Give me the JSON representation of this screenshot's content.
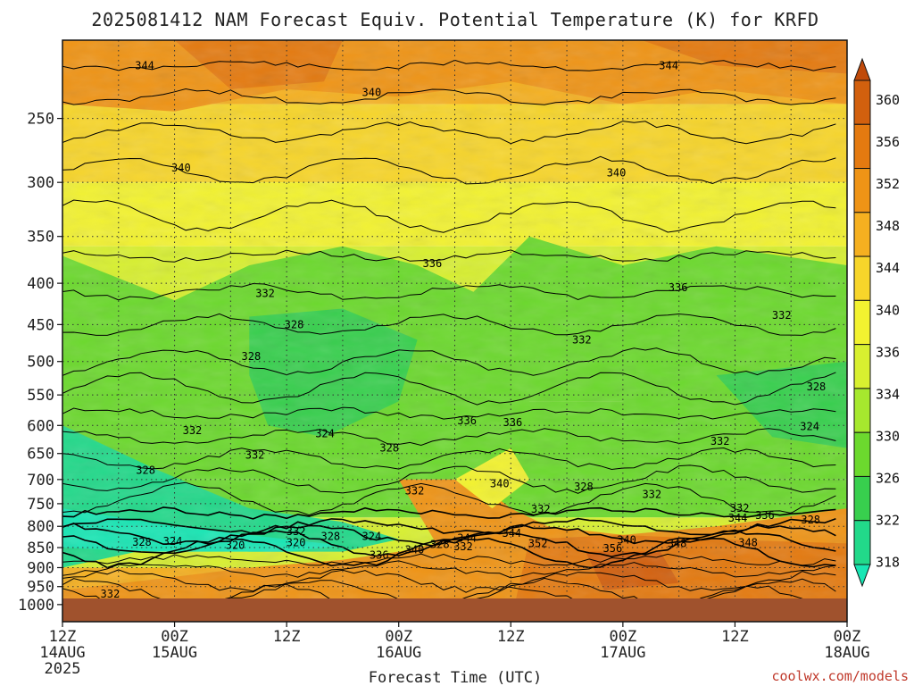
{
  "title": "2025081412 NAM Forecast Equiv. Potential Temperature (K) for KRFD",
  "credit": "coolwx.com/models",
  "colors": {
    "ground": "#a0522d",
    "background": "#ffffff",
    "grid": "#333333",
    "credit": "#c0392b"
  },
  "chart_data": {
    "type": "heatmap",
    "title": "2025081412 NAM Forecast Equiv. Potential Temperature (K) for KRFD",
    "xlabel": "Forecast Time (UTC)",
    "ylabel": "",
    "x_range_hours": [
      0,
      84
    ],
    "y_scale": "log",
    "y_range_hPa": [
      200,
      1050
    ],
    "y_ticks": [
      250,
      300,
      350,
      400,
      450,
      500,
      550,
      600,
      650,
      700,
      750,
      800,
      850,
      900,
      950,
      1000
    ],
    "x_ticks": [
      {
        "hour": 0,
        "line1": "12Z",
        "line2": "14AUG",
        "line3": "2025"
      },
      {
        "hour": 12,
        "line1": "00Z",
        "line2": "15AUG",
        "line3": ""
      },
      {
        "hour": 24,
        "line1": "12Z",
        "line2": "",
        "line3": ""
      },
      {
        "hour": 36,
        "line1": "00Z",
        "line2": "16AUG",
        "line3": ""
      },
      {
        "hour": 48,
        "line1": "12Z",
        "line2": "",
        "line3": ""
      },
      {
        "hour": 60,
        "line1": "00Z",
        "line2": "17AUG",
        "line3": ""
      },
      {
        "hour": 72,
        "line1": "12Z",
        "line2": "",
        "line3": ""
      },
      {
        "hour": 84,
        "line1": "00Z",
        "line2": "18AUG",
        "line3": ""
      }
    ],
    "grid": true,
    "colorbar": {
      "labels": [
        "360",
        "356",
        "352",
        "348",
        "344",
        "340",
        "336",
        "334",
        "330",
        "326",
        "322",
        "318"
      ],
      "levels": [
        318,
        322,
        326,
        330,
        334,
        336,
        340,
        344,
        348,
        352,
        356,
        360
      ],
      "colors": [
        "#18e6b4",
        "#22d98a",
        "#38cf4e",
        "#6cd92e",
        "#a6e82e",
        "#d8f030",
        "#f2f230",
        "#f7d52a",
        "#f5b020",
        "#ef9416",
        "#e47a10",
        "#d2600e",
        "#c04a0a"
      ]
    },
    "contour_labels": [
      {
        "value": "344",
        "hour": 8.8,
        "p": 215
      },
      {
        "value": "344",
        "hour": 64.9,
        "p": 215
      },
      {
        "value": "340",
        "hour": 33.1,
        "p": 232
      },
      {
        "value": "340",
        "hour": 12.7,
        "p": 288
      },
      {
        "value": "340",
        "hour": 59.3,
        "p": 292
      },
      {
        "value": "336",
        "hour": 39.6,
        "p": 378
      },
      {
        "value": "336",
        "hour": 65.9,
        "p": 405
      },
      {
        "value": "332",
        "hour": 21.7,
        "p": 412
      },
      {
        "value": "332",
        "hour": 55.6,
        "p": 470
      },
      {
        "value": "332",
        "hour": 77.0,
        "p": 438
      },
      {
        "value": "328",
        "hour": 24.8,
        "p": 450
      },
      {
        "value": "328",
        "hour": 20.2,
        "p": 493
      },
      {
        "value": "328",
        "hour": 80.7,
        "p": 537
      },
      {
        "value": "336",
        "hour": 43.3,
        "p": 592
      },
      {
        "value": "336",
        "hour": 48.2,
        "p": 595
      },
      {
        "value": "332",
        "hour": 13.9,
        "p": 609
      },
      {
        "value": "324",
        "hour": 28.1,
        "p": 614
      },
      {
        "value": "324",
        "hour": 80.0,
        "p": 602
      },
      {
        "value": "332",
        "hour": 70.4,
        "p": 628
      },
      {
        "value": "328",
        "hour": 35.0,
        "p": 640
      },
      {
        "value": "332",
        "hour": 20.6,
        "p": 653
      },
      {
        "value": "328",
        "hour": 8.9,
        "p": 682
      },
      {
        "value": "340",
        "hour": 46.8,
        "p": 708
      },
      {
        "value": "328",
        "hour": 55.8,
        "p": 715
      },
      {
        "value": "332",
        "hour": 37.7,
        "p": 723
      },
      {
        "value": "332",
        "hour": 63.1,
        "p": 730
      },
      {
        "value": "332",
        "hour": 51.2,
        "p": 762
      },
      {
        "value": "332",
        "hour": 72.5,
        "p": 760
      },
      {
        "value": "344",
        "hour": 72.3,
        "p": 781
      },
      {
        "value": "336",
        "hour": 75.2,
        "p": 775
      },
      {
        "value": "328",
        "hour": 80.1,
        "p": 785
      },
      {
        "value": "332",
        "hour": 25.0,
        "p": 812
      },
      {
        "value": "328",
        "hour": 28.7,
        "p": 823
      },
      {
        "value": "324",
        "hour": 33.1,
        "p": 823
      },
      {
        "value": "344",
        "hour": 48.1,
        "p": 816
      },
      {
        "value": "344",
        "hour": 43.3,
        "p": 827
      },
      {
        "value": "328",
        "hour": 8.5,
        "p": 837
      },
      {
        "value": "324",
        "hour": 11.8,
        "p": 835
      },
      {
        "value": "352",
        "hour": 50.9,
        "p": 840
      },
      {
        "value": "340",
        "hour": 60.4,
        "p": 832
      },
      {
        "value": "348",
        "hour": 65.8,
        "p": 840
      },
      {
        "value": "348",
        "hour": 73.4,
        "p": 838
      },
      {
        "value": "320",
        "hour": 18.5,
        "p": 845
      },
      {
        "value": "320",
        "hour": 25.0,
        "p": 838
      },
      {
        "value": "328",
        "hour": 40.4,
        "p": 842
      },
      {
        "value": "332",
        "hour": 42.9,
        "p": 848
      },
      {
        "value": "340",
        "hour": 37.7,
        "p": 855
      },
      {
        "value": "356",
        "hour": 58.9,
        "p": 852
      },
      {
        "value": "336",
        "hour": 33.9,
        "p": 868
      },
      {
        "value": "332",
        "hour": 5.1,
        "p": 970
      }
    ]
  }
}
